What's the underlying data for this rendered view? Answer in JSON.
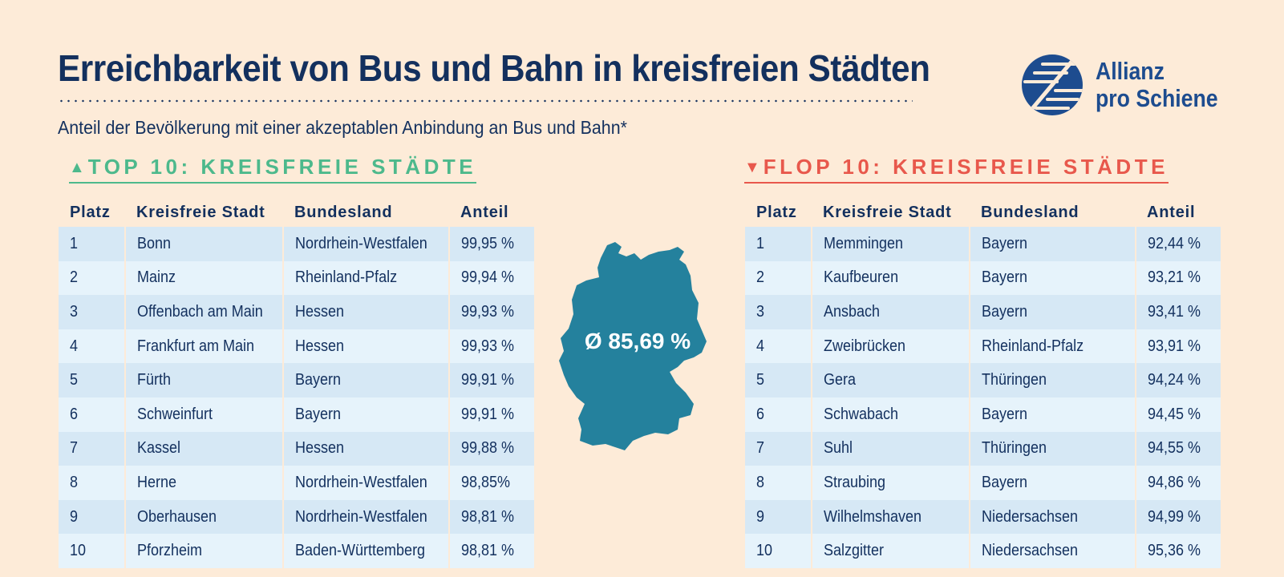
{
  "title": "Erreichbarkeit von Bus und Bahn in kreisfreien Städten",
  "subtitle": "Anteil der Bevölkerung mit einer akzeptablen Anbindung an Bus und Bahn*",
  "logo": {
    "line1": "Allianz",
    "line2": "pro Schiene",
    "icon": "allianz-pro-schiene-logo"
  },
  "colors": {
    "navy": "#13305e",
    "green": "#4db98c",
    "red": "#e8584c",
    "map": "#24819d",
    "background": "#fdebd8"
  },
  "headers": {
    "rank": "Platz",
    "city": "Kreisfreie Stadt",
    "state": "Bundesland",
    "share": "Anteil"
  },
  "top": {
    "heading": "TOP 10: KREISFREIE STÄDTE",
    "arrow_icon": "arrow-up-icon",
    "rows": [
      {
        "rank": "1",
        "city": "Bonn",
        "state": "Nordrhein-Westfalen",
        "share": "99,95 %"
      },
      {
        "rank": "2",
        "city": "Mainz",
        "state": "Rheinland-Pfalz",
        "share": "99,94 %"
      },
      {
        "rank": "3",
        "city": "Offenbach am Main",
        "state": "Hessen",
        "share": "99,93 %"
      },
      {
        "rank": "4",
        "city": "Frankfurt am Main",
        "state": "Hessen",
        "share": "99,93 %"
      },
      {
        "rank": "5",
        "city": "Fürth",
        "state": "Bayern",
        "share": "99,91 %"
      },
      {
        "rank": "6",
        "city": "Schweinfurt",
        "state": "Bayern",
        "share": "99,91 %"
      },
      {
        "rank": "7",
        "city": "Kassel",
        "state": "Hessen",
        "share": "99,88 %"
      },
      {
        "rank": "8",
        "city": "Herne",
        "state": "Nordrhein-Westfalen",
        "share": "98,85%"
      },
      {
        "rank": "9",
        "city": "Oberhausen",
        "state": "Nordrhein-Westfalen",
        "share": "98,81 %"
      },
      {
        "rank": "10",
        "city": "Pforzheim",
        "state": "Baden-Württemberg",
        "share": "98,81 %"
      }
    ]
  },
  "flop": {
    "heading": "FLOP 10: KREISFREIE STÄDTE",
    "arrow_icon": "arrow-down-icon",
    "rows": [
      {
        "rank": "1",
        "city": "Memmingen",
        "state": "Bayern",
        "share": "92,44 %"
      },
      {
        "rank": "2",
        "city": "Kaufbeuren",
        "state": "Bayern",
        "share": "93,21 %"
      },
      {
        "rank": "3",
        "city": "Ansbach",
        "state": "Bayern",
        "share": "93,41 %"
      },
      {
        "rank": "4",
        "city": "Zweibrücken",
        "state": "Rheinland-Pfalz",
        "share": "93,91 %"
      },
      {
        "rank": "5",
        "city": "Gera",
        "state": "Thüringen",
        "share": "94,24 %"
      },
      {
        "rank": "6",
        "city": "Schwabach",
        "state": "Bayern",
        "share": "94,45 %"
      },
      {
        "rank": "7",
        "city": "Suhl",
        "state": "Thüringen",
        "share": "94,55 %"
      },
      {
        "rank": "8",
        "city": "Straubing",
        "state": "Bayern",
        "share": "94,86 %"
      },
      {
        "rank": "9",
        "city": "Wilhelmshaven",
        "state": "Niedersachsen",
        "share": "94,99 %"
      },
      {
        "rank": "10",
        "city": "Salzgitter",
        "state": "Niedersachsen",
        "share": "95,36 %"
      }
    ]
  },
  "map": {
    "icon": "germany-map-icon",
    "average_label": "Ø 85,69 %"
  }
}
